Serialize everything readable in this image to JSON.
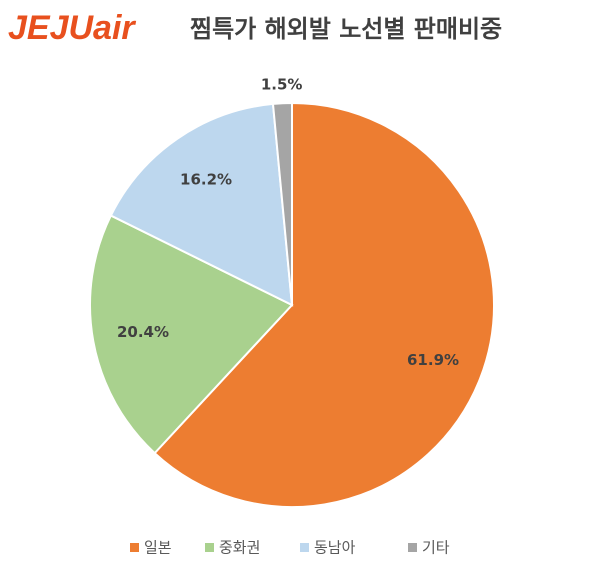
{
  "logo": "JEJUair",
  "chart_data": {
    "type": "pie",
    "title": "찜특가 해외발 노선별 판매비중",
    "categories": [
      "일본",
      "중화권",
      "동남아",
      "기타"
    ],
    "values": [
      61.9,
      20.4,
      16.2,
      1.5
    ],
    "value_labels": [
      "61.9%",
      "20.4%",
      "16.2%",
      "1.5%"
    ],
    "colors": [
      "#ed7d31",
      "#a9d18e",
      "#bdd7ee",
      "#a5a5a5"
    ],
    "legend": "bottom"
  }
}
